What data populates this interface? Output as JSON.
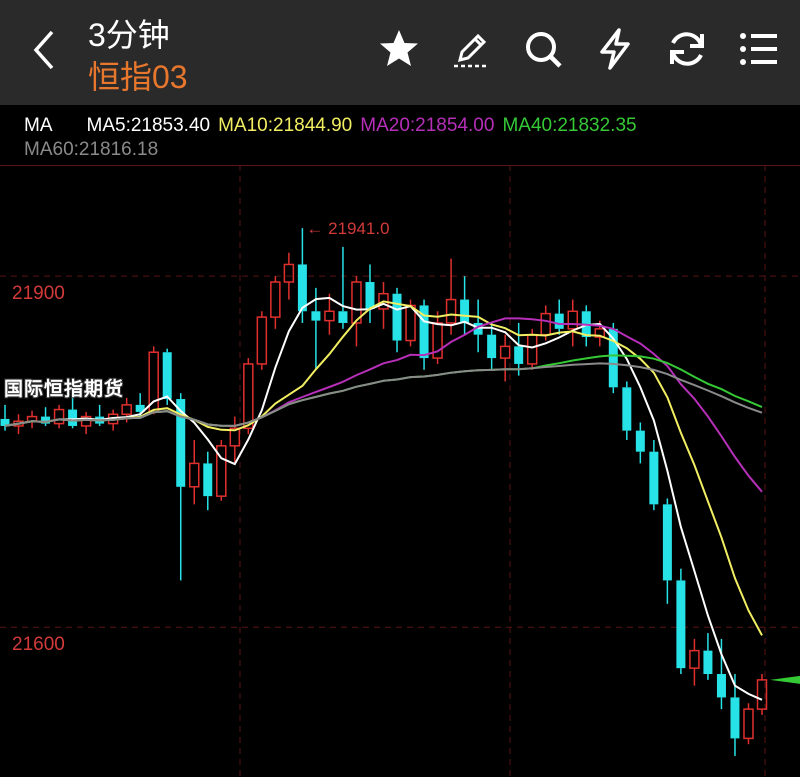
{
  "header": {
    "title": "3分钟",
    "subtitle": "恒指03",
    "icons": [
      "back-chevron-icon",
      "star-icon",
      "draw-pen-icon",
      "search-icon",
      "lightning-icon",
      "refresh-icon",
      "menu-list-icon"
    ]
  },
  "ma_legend": {
    "label": "MA",
    "ma5": "MA5:21853.40",
    "ma10": "MA10:21844.90",
    "ma20": "MA20:21854.00",
    "ma40": "MA40:21832.35",
    "ma60": "MA60:21816.18"
  },
  "watermark": "国际恒指期货",
  "colors": {
    "up": "#e0302e",
    "down": "#27e3e8",
    "ma5": "#ffffff",
    "ma10": "#f2ee62",
    "ma20": "#b62fb8",
    "ma40": "#35c935",
    "ma60": "#8a8a8a",
    "grid": "#5a1414",
    "price_label": "#d23a3a",
    "accent": "#e8772e"
  },
  "chart_data": {
    "type": "candlestick",
    "y_ticks": [
      21900,
      21600
    ],
    "ylim": [
      21472,
      21995
    ],
    "max_annotation": "21941.0",
    "ohlc": [
      [
        21778,
        21790,
        21768,
        21772
      ],
      [
        21772,
        21782,
        21765,
        21776
      ],
      [
        21776,
        21785,
        21770,
        21780
      ],
      [
        21780,
        21788,
        21772,
        21774
      ],
      [
        21774,
        21790,
        21770,
        21786
      ],
      [
        21786,
        21800,
        21770,
        21772
      ],
      [
        21772,
        21784,
        21765,
        21780
      ],
      [
        21780,
        21790,
        21772,
        21774
      ],
      [
        21774,
        21786,
        21768,
        21782
      ],
      [
        21782,
        21796,
        21775,
        21790
      ],
      [
        21790,
        21800,
        21780,
        21784
      ],
      [
        21784,
        21840,
        21782,
        21835
      ],
      [
        21835,
        21838,
        21790,
        21795
      ],
      [
        21795,
        21800,
        21640,
        21720
      ],
      [
        21720,
        21760,
        21705,
        21740
      ],
      [
        21740,
        21750,
        21700,
        21712
      ],
      [
        21712,
        21760,
        21708,
        21755
      ],
      [
        21755,
        21780,
        21740,
        21770
      ],
      [
        21770,
        21830,
        21765,
        21825
      ],
      [
        21825,
        21870,
        21820,
        21865
      ],
      [
        21865,
        21900,
        21855,
        21895
      ],
      [
        21895,
        21920,
        21880,
        21910
      ],
      [
        21910,
        21941,
        21860,
        21870
      ],
      [
        21870,
        21890,
        21820,
        21862
      ],
      [
        21862,
        21885,
        21850,
        21870
      ],
      [
        21870,
        21925,
        21855,
        21860
      ],
      [
        21860,
        21900,
        21840,
        21895
      ],
      [
        21895,
        21910,
        21860,
        21872
      ],
      [
        21872,
        21895,
        21855,
        21885
      ],
      [
        21885,
        21890,
        21835,
        21845
      ],
      [
        21845,
        21880,
        21840,
        21875
      ],
      [
        21875,
        21880,
        21820,
        21830
      ],
      [
        21830,
        21870,
        21825,
        21860
      ],
      [
        21860,
        21915,
        21850,
        21880
      ],
      [
        21880,
        21900,
        21850,
        21860
      ],
      [
        21860,
        21880,
        21835,
        21850
      ],
      [
        21850,
        21860,
        21820,
        21830
      ],
      [
        21830,
        21850,
        21810,
        21840
      ],
      [
        21840,
        21860,
        21815,
        21825
      ],
      [
        21825,
        21855,
        21820,
        21850
      ],
      [
        21850,
        21875,
        21845,
        21868
      ],
      [
        21868,
        21880,
        21850,
        21855
      ],
      [
        21855,
        21880,
        21840,
        21870
      ],
      [
        21870,
        21875,
        21840,
        21848
      ],
      [
        21848,
        21862,
        21840,
        21855
      ],
      [
        21855,
        21860,
        21800,
        21805
      ],
      [
        21805,
        21810,
        21760,
        21768
      ],
      [
        21768,
        21775,
        21740,
        21750
      ],
      [
        21750,
        21760,
        21700,
        21705
      ],
      [
        21705,
        21710,
        21620,
        21640
      ],
      [
        21640,
        21650,
        21560,
        21565
      ],
      [
        21565,
        21590,
        21550,
        21580
      ],
      [
        21580,
        21595,
        21555,
        21560
      ],
      [
        21560,
        21590,
        21530,
        21540
      ],
      [
        21540,
        21560,
        21490,
        21505
      ],
      [
        21505,
        21535,
        21500,
        21530
      ],
      [
        21530,
        21560,
        21525,
        21555
      ]
    ],
    "ma_periods": [
      5,
      10,
      20,
      40,
      60
    ]
  }
}
